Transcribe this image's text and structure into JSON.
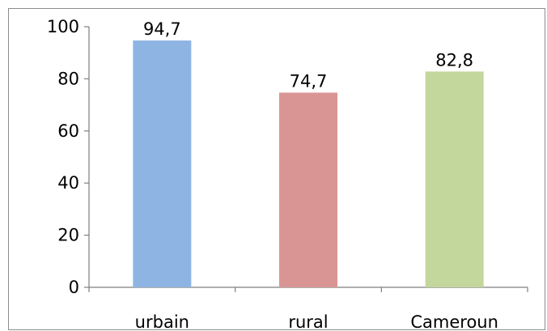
{
  "chart_data": {
    "type": "bar",
    "categories": [
      "urbain",
      "rural",
      "Cameroun"
    ],
    "values": [
      94.7,
      74.7,
      82.8
    ],
    "data_labels": [
      "94,7",
      "74,7",
      "82,8"
    ],
    "colors": [
      "#8EB4E3",
      "#D99594",
      "#C3D69B"
    ],
    "ylim": [
      0,
      100
    ],
    "yticks": [
      0,
      20,
      40,
      60,
      80,
      100
    ],
    "title": "",
    "xlabel": "",
    "ylabel": "",
    "grid": false,
    "legend": "none"
  }
}
